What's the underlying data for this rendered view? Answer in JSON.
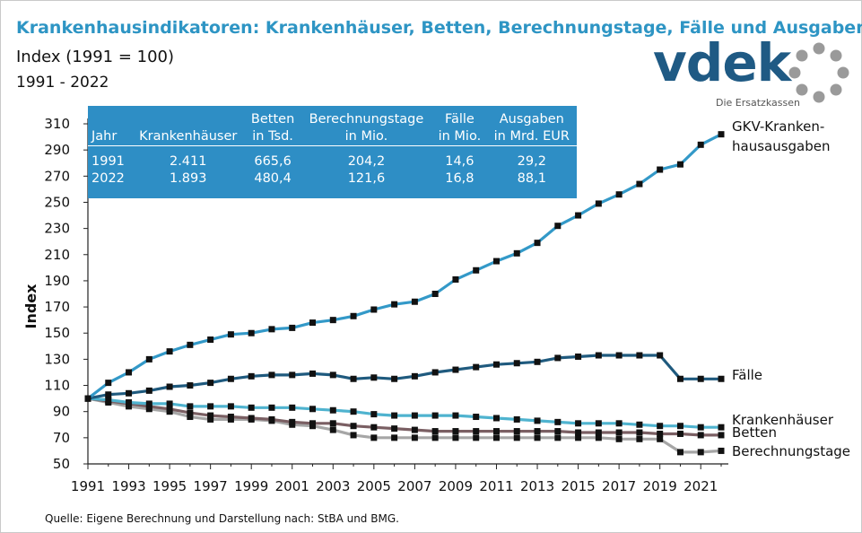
{
  "title": "Krankenhausindikatoren: Krankenhäuser, Betten, Berechnungstage, Fälle und Ausgaben",
  "subtitle": "Index (1991 = 100)",
  "period": "1991 - 2022",
  "logo": {
    "text": "vdek",
    "tagline": "Die Ersatzkassen"
  },
  "source": "Quelle: Eigene Berechnung und Darstellung nach: StBA und BMG.",
  "table": {
    "headers": [
      [
        "Jahr",
        ""
      ],
      [
        "Krankenhäuser",
        ""
      ],
      [
        "Betten",
        "in Tsd."
      ],
      [
        "Berechnungstage",
        "in Mio."
      ],
      [
        "Fälle",
        "in Mio."
      ],
      [
        "Ausgaben",
        "in Mrd. EUR"
      ]
    ],
    "rows": [
      [
        "1991",
        "2.411",
        "665,6",
        "204,2",
        "14,6",
        "29,2"
      ],
      [
        "2022",
        "1.893",
        "480,4",
        "121,6",
        "16,8",
        "88,1"
      ]
    ]
  },
  "colors": {
    "title": "#2e95c4",
    "table_bg": "#2e8ec5",
    "ausgaben": "#3399c8",
    "faelle": "#1f5a7e",
    "krankenhaeuser": "#4fb3cf",
    "betten": "#7a5f63",
    "berechnungstage": "#a6a6a6",
    "marker": "#111111"
  },
  "chart_data": {
    "type": "line",
    "ylabel": "Index",
    "xlabel": "",
    "ylim": [
      50,
      310
    ],
    "yticks": [
      50,
      70,
      90,
      110,
      130,
      150,
      170,
      190,
      210,
      230,
      250,
      270,
      290,
      310
    ],
    "xlim": [
      1991,
      2022
    ],
    "xticks": [
      1991,
      1993,
      1995,
      1997,
      1999,
      2001,
      2003,
      2005,
      2007,
      2009,
      2011,
      2013,
      2015,
      2017,
      2019,
      2021
    ],
    "x": [
      1991,
      1992,
      1993,
      1994,
      1995,
      1996,
      1997,
      1998,
      1999,
      2000,
      2001,
      2002,
      2003,
      2004,
      2005,
      2006,
      2007,
      2008,
      2009,
      2010,
      2011,
      2012,
      2013,
      2014,
      2015,
      2016,
      2017,
      2018,
      2019,
      2020,
      2021,
      2022
    ],
    "grid": false,
    "series": [
      {
        "name": "GKV-Krankenhausausgaben",
        "label_lines": [
          "GKV-Kranken-",
          "hausausgaben"
        ],
        "color_key": "ausgaben",
        "values": [
          100,
          112,
          120,
          130,
          136,
          141,
          145,
          149,
          150,
          153,
          154,
          158,
          160,
          163,
          168,
          172,
          174,
          180,
          191,
          198,
          205,
          211,
          219,
          232,
          240,
          249,
          256,
          264,
          275,
          279,
          294,
          302
        ]
      },
      {
        "name": "Fälle",
        "label_lines": [
          "Fälle"
        ],
        "color_key": "faelle",
        "values": [
          100,
          103,
          104,
          106,
          109,
          110,
          112,
          115,
          117,
          118,
          118,
          119,
          118,
          115,
          116,
          115,
          117,
          120,
          122,
          124,
          126,
          127,
          128,
          131,
          132,
          133,
          133,
          133,
          133,
          115,
          115,
          115
        ]
      },
      {
        "name": "Krankenhäuser",
        "label_lines": [
          "Krankenhäuser"
        ],
        "color_key": "krankenhaeuser",
        "values": [
          100,
          99,
          97,
          96,
          96,
          94,
          94,
          94,
          93,
          93,
          93,
          92,
          91,
          90,
          88,
          87,
          87,
          87,
          87,
          86,
          85,
          84,
          83,
          82,
          81,
          81,
          81,
          80,
          79,
          79,
          78,
          78
        ]
      },
      {
        "name": "Betten",
        "label_lines": [
          "Betten"
        ],
        "color_key": "betten",
        "values": [
          100,
          98,
          96,
          94,
          92,
          89,
          87,
          86,
          85,
          84,
          82,
          81,
          81,
          79,
          78,
          77,
          76,
          75,
          75,
          75,
          75,
          75,
          75,
          75,
          74,
          74,
          74,
          74,
          73,
          73,
          72,
          72
        ]
      },
      {
        "name": "Berechnungstage",
        "label_lines": [
          "Berechnungstage"
        ],
        "color_key": "berechnungstage",
        "values": [
          100,
          97,
          94,
          92,
          90,
          86,
          84,
          84,
          84,
          83,
          80,
          79,
          76,
          72,
          70,
          70,
          70,
          70,
          70,
          70,
          70,
          70,
          70,
          70,
          70,
          70,
          69,
          69,
          69,
          59,
          59,
          60
        ]
      }
    ]
  }
}
